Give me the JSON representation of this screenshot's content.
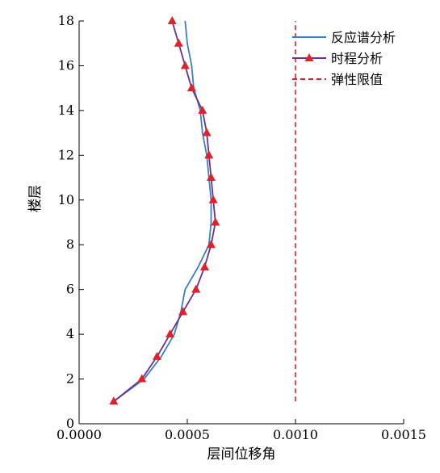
{
  "chart_data": {
    "type": "line",
    "xlabel": "层间位移角",
    "ylabel": "楼层",
    "xlim": [
      0,
      0.0015
    ],
    "ylim": [
      0,
      18
    ],
    "x_ticks": [
      "0.0000",
      "0.0005",
      "0.0010",
      "0.0015"
    ],
    "y_ticks": [
      "0",
      "2",
      "4",
      "6",
      "8",
      "10",
      "12",
      "14",
      "16",
      "18"
    ],
    "legend_position": "top-right",
    "grid": false,
    "series": [
      {
        "name": "反应谱分析",
        "color": "#3a7fc1",
        "style": "solid",
        "x": [
          0.00016,
          0.0003,
          0.00038,
          0.00044,
          0.00047,
          0.00049,
          0.00055,
          0.0006,
          0.00061,
          0.00061,
          0.0006,
          0.00059,
          0.00057,
          0.00056,
          0.00053,
          0.00052,
          0.0005,
          0.00049
        ],
        "y": [
          1,
          2,
          3,
          4,
          5,
          6,
          7,
          8,
          9,
          10,
          11,
          12,
          13,
          14,
          15,
          16,
          17,
          18
        ]
      },
      {
        "name": "时程分析",
        "color": "#6a2f8f",
        "style": "solid",
        "marker": "triangle",
        "marker_color": "#e3202a",
        "x": [
          0.00016,
          0.00029,
          0.00036,
          0.00042,
          0.00048,
          0.00054,
          0.00058,
          0.00061,
          0.00063,
          0.00062,
          0.00061,
          0.0006,
          0.00059,
          0.00057,
          0.00052,
          0.00049,
          0.00046,
          0.00043
        ],
        "y": [
          1,
          2,
          3,
          4,
          5,
          6,
          7,
          8,
          9,
          10,
          11,
          12,
          13,
          14,
          15,
          16,
          17,
          18
        ]
      },
      {
        "name": "弹性限值",
        "color": "#e3202a",
        "style": "dashed",
        "x": [
          0.001,
          0.001
        ],
        "y": [
          1,
          18
        ]
      }
    ]
  }
}
